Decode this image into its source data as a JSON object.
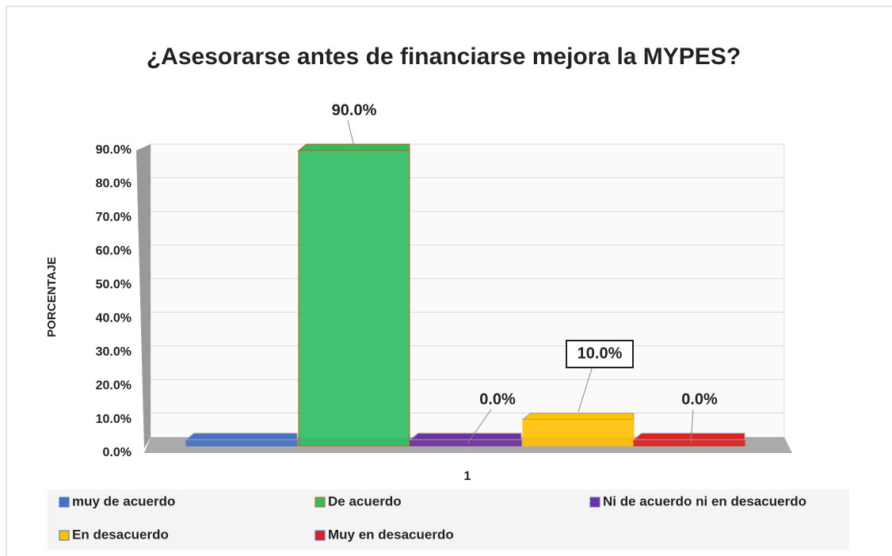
{
  "chart_data": {
    "type": "bar3d",
    "title": "¿Asesorarse antes de financiarse mejora la MYPES?",
    "y_label": "PORCENTAJE",
    "categories": [
      "1"
    ],
    "series": [
      {
        "name": "muy de acuerdo",
        "color": "#4472c4",
        "values": [
          0
        ]
      },
      {
        "name": "De acuerdo",
        "color": "#2dbd62",
        "values": [
          90
        ],
        "value_labels": [
          "90.0%"
        ]
      },
      {
        "name": "Ni de acuerdo ni en desacuerdo",
        "color": "#7030a0",
        "values": [
          0
        ],
        "value_labels": [
          "0.0%"
        ]
      },
      {
        "name": "En desacuerdo",
        "color": "#ffc000",
        "values": [
          10
        ],
        "value_labels": [
          "10.0%"
        ]
      },
      {
        "name": "Muy en desacuerdo",
        "color": "#e02020",
        "values": [
          0
        ],
        "value_labels": [
          "0.0%"
        ]
      }
    ],
    "ylim": [
      0,
      90
    ],
    "yticks": [
      {
        "value": 0,
        "label": "0.0%"
      },
      {
        "value": 10,
        "label": "10.0%"
      },
      {
        "value": 20,
        "label": "20.0%"
      },
      {
        "value": 30,
        "label": "30.0%"
      },
      {
        "value": 40,
        "label": "40.0%"
      },
      {
        "value": 50,
        "label": "50.0%"
      },
      {
        "value": 60,
        "label": "60.0%"
      },
      {
        "value": 70,
        "label": "70.0%"
      },
      {
        "value": 80,
        "label": "80.0%"
      },
      {
        "value": 90,
        "label": "90.0%"
      }
    ],
    "grid": true
  }
}
